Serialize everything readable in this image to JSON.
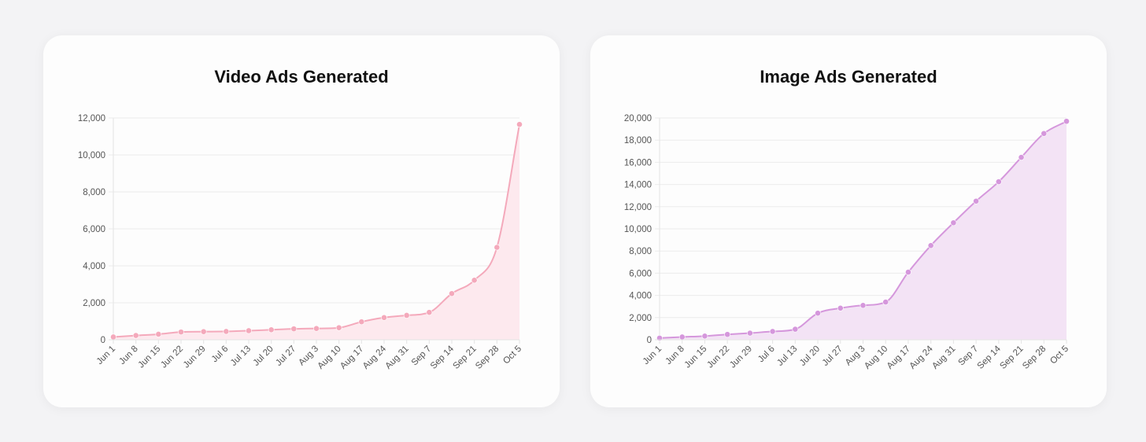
{
  "chart_data": [
    {
      "type": "area",
      "title": "Video Ads Generated",
      "x": [
        "Jun 1",
        "Jun 8",
        "Jun 15",
        "Jun 22",
        "Jun 29",
        "Jul 6",
        "Jul 13",
        "Jul 20",
        "Jul 27",
        "Aug 3",
        "Aug 10",
        "Aug 17",
        "Aug 24",
        "Aug 31",
        "Sep 7",
        "Sep 14",
        "Sep 21",
        "Sep 28",
        "Oct 5"
      ],
      "series": [
        {
          "values": [
            150,
            230,
            300,
            420,
            440,
            450,
            490,
            540,
            590,
            610,
            650,
            970,
            1200,
            1320,
            1480,
            2500,
            3220,
            5000,
            11650
          ]
        }
      ],
      "ylim": [
        0,
        12000
      ],
      "yticks": [
        0,
        2000,
        4000,
        6000,
        8000,
        10000,
        12000
      ],
      "ytick_labels": [
        "0",
        "2,000",
        "4,000",
        "6,000",
        "8,000",
        "10,000",
        "12,000"
      ],
      "grid": true,
      "colors": {
        "line": "#f4a9bb",
        "fill": "#fde9ee",
        "point": "#f4a9bb"
      }
    },
    {
      "type": "area",
      "title": "Image Ads Generated",
      "x": [
        "Jun 1",
        "Jun 8",
        "Jun 15",
        "Jun 22",
        "Jun 29",
        "Jul 6",
        "Jul 13",
        "Jul 20",
        "Jul 27",
        "Aug 3",
        "Aug 10",
        "Aug 17",
        "Aug 24",
        "Aug 31",
        "Sep 7",
        "Sep 14",
        "Sep 21",
        "Sep 28",
        "Oct 5"
      ],
      "series": [
        {
          "values": [
            150,
            250,
            330,
            480,
            600,
            750,
            950,
            2400,
            2850,
            3100,
            3400,
            6100,
            8500,
            10550,
            12500,
            14250,
            16450,
            18600,
            19700
          ]
        }
      ],
      "ylim": [
        0,
        20000
      ],
      "yticks": [
        0,
        2000,
        4000,
        6000,
        8000,
        10000,
        12000,
        14000,
        16000,
        18000,
        20000
      ],
      "ytick_labels": [
        "0",
        "2,000",
        "4,000",
        "6,000",
        "8,000",
        "10,000",
        "12,000",
        "14,000",
        "16,000",
        "18,000",
        "20,000"
      ],
      "grid": true,
      "colors": {
        "line": "#d597dc",
        "fill": "#f3e3f5",
        "point": "#d597dc"
      }
    }
  ]
}
